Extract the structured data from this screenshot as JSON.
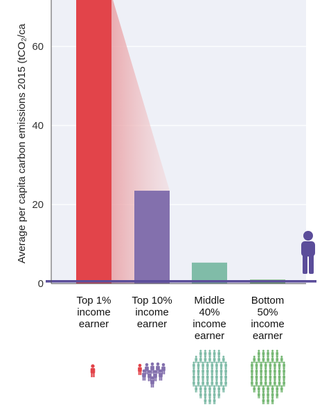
{
  "chart_data": {
    "type": "bar",
    "ylabel": "Average per capita carbon emissions 2015 (tCO₂/ca",
    "yticks": [
      0,
      20,
      40,
      60
    ],
    "ylim": [
      0,
      73
    ],
    "grid": true,
    "categories": [
      [
        "Top 1%",
        "income",
        "earner"
      ],
      [
        "Top 10%",
        "income",
        "earner"
      ],
      [
        "Middle",
        "40%",
        "income",
        "earner"
      ],
      [
        "Bottom",
        "50%",
        "income",
        "earner"
      ]
    ],
    "values": [
      73,
      23.5,
      5.3,
      1.0
    ],
    "colors": [
      "#e2444a",
      "#8370ad",
      "#80bca8",
      "#77b875"
    ],
    "average_line_value": 1.8,
    "average_line_color": "#5b4d9a",
    "icon_colors": [
      "#e2444a",
      "#8370ad",
      "#80bca8",
      "#77b875"
    ],
    "average_icon_color": "#5b4d9a",
    "background_color": "#eef0f7"
  }
}
